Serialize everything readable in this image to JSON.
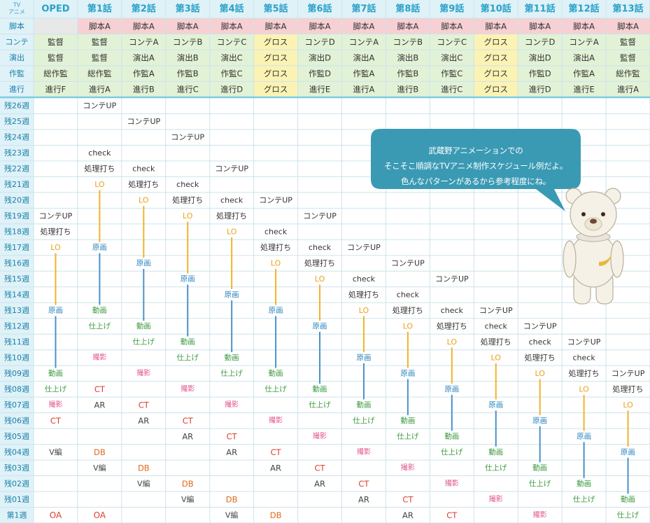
{
  "colors": {
    "header_bg": "#dff2f8",
    "header_text": "#2aa0c8",
    "row_label_text": "#1a7ea8",
    "grid": "#cde3ec",
    "divider": "#7ccbe2",
    "script_bg": "#f7d0d3",
    "kt_bg": "#e2f2d6",
    "gross_bg": "#fbf3b4",
    "shaded_bg": "#e8e8e8",
    "bubble": "#3a9ab4",
    "lo_line": "#f1b32a",
    "genga_line": "#4a92c6"
  },
  "header": {
    "corner": [
      "TV",
      "アニメ"
    ],
    "columns": [
      "OPED",
      "第1話",
      "第2話",
      "第3話",
      "第4話",
      "第5話",
      "第6話",
      "第7話",
      "第8話",
      "第9話",
      "第10話",
      "第11話",
      "第12話",
      "第13話"
    ]
  },
  "staff_rows": [
    {
      "label": "脚本",
      "cells": [
        "",
        "脚本A",
        "脚本A",
        "脚本A",
        "脚本A",
        "脚本A",
        "脚本A",
        "脚本A",
        "脚本A",
        "脚本A",
        "脚本A",
        "脚本A",
        "脚本A",
        "脚本A"
      ]
    },
    {
      "label": "コンテ",
      "cells": [
        "監督",
        "監督",
        "コンテA",
        "コンテB",
        "コンテC",
        "グロス",
        "コンテD",
        "コンテA",
        "コンテB",
        "コンテC",
        "グロス",
        "コンテD",
        "コンテA",
        "監督"
      ]
    },
    {
      "label": "演出",
      "cells": [
        "監督",
        "監督",
        "演出A",
        "演出B",
        "演出C",
        "グロス",
        "演出D",
        "演出A",
        "演出B",
        "演出C",
        "グロス",
        "演出D",
        "演出A",
        "監督"
      ]
    },
    {
      "label": "作監",
      "cells": [
        "総作監",
        "総作監",
        "作監A",
        "作監B",
        "作監C",
        "グロス",
        "作監D",
        "作監A",
        "作監B",
        "作監C",
        "グロス",
        "作監D",
        "作監A",
        "総作監"
      ]
    },
    {
      "label": "進行",
      "cells": [
        "進行F",
        "進行A",
        "進行B",
        "進行C",
        "進行D",
        "グロス",
        "進行E",
        "進行A",
        "進行B",
        "進行C",
        "グロス",
        "進行D",
        "進行E",
        "進行A"
      ]
    }
  ],
  "weeks": [
    "残26週",
    "残25週",
    "残24週",
    "残23週",
    "残22週",
    "残21週",
    "残20週",
    "残19週",
    "残18週",
    "残17週",
    "残16週",
    "残15週",
    "残14週",
    "残13週",
    "残12週",
    "残11週",
    "残10週",
    "残09週",
    "残08週",
    "残07週",
    "残06週",
    "残05週",
    "残04週",
    "残03週",
    "残02週",
    "残01週",
    "第1週"
  ],
  "tasks": {
    "storyboard_up": "コンテUP",
    "check": "check",
    "processing": "処理打ち",
    "lo": "LO",
    "genga": "原画",
    "douga": "動画",
    "shiage": "仕上げ",
    "satsuei": "撮影",
    "ct": "CT",
    "ar": "AR",
    "db": "DB",
    "vhen": "V編",
    "oa": "OA"
  },
  "schedule": [
    {
      "col": 0,
      "rows": {
        "storyboard_up": 7,
        "processing": 8,
        "lo": 9,
        "genga": 13,
        "douga": 17,
        "shiage": 18,
        "satsuei": 19,
        "ct": 20,
        "vhen": 22,
        "oa": 26
      }
    },
    {
      "col": 1,
      "rows": {
        "storyboard_up": 0,
        "check": 3,
        "processing": 4,
        "lo": 5,
        "genga": 9,
        "douga": 13,
        "shiage": 14,
        "satsuei": 16,
        "ct": 18,
        "ar": 19,
        "db": 22,
        "vhen": 23,
        "oa": 26
      }
    },
    {
      "col": 2,
      "rows": {
        "storyboard_up": 1,
        "check": 4,
        "processing": 5,
        "lo": 6,
        "genga": 10,
        "douga": 14,
        "shiage": 15,
        "satsuei": 17,
        "ct": 19,
        "ar": 20,
        "db": 23,
        "vhen": 24
      }
    },
    {
      "col": 3,
      "rows": {
        "storyboard_up": 2,
        "check": 5,
        "processing": 6,
        "lo": 7,
        "genga": 11,
        "douga": 15,
        "shiage": 16,
        "satsuei": 18,
        "ct": 20,
        "ar": 21,
        "db": 24,
        "vhen": 25
      }
    },
    {
      "col": 4,
      "rows": {
        "storyboard_up": 4,
        "check": 6,
        "processing": 7,
        "lo": 8,
        "genga": 12,
        "douga": 16,
        "shiage": 17,
        "satsuei": 19,
        "ct": 21,
        "ar": 22,
        "db": 25,
        "vhen": 26
      }
    },
    {
      "col": 5,
      "rows": {
        "storyboard_up": 6,
        "check": 8,
        "processing": 9,
        "lo": 10,
        "genga": 13,
        "douga": 17,
        "shiage": 18,
        "satsuei": 20,
        "ct": 22,
        "ar": 23,
        "db": 26
      }
    },
    {
      "col": 6,
      "rows": {
        "storyboard_up": 7,
        "check": 9,
        "processing": 10,
        "lo": 11,
        "genga": 14,
        "douga": 18,
        "shiage": 19,
        "satsuei": 21,
        "ct": 23,
        "ar": 24
      }
    },
    {
      "col": 7,
      "rows": {
        "storyboard_up": 9,
        "check": 11,
        "processing": 12,
        "lo": 13,
        "genga": 16,
        "douga": 19,
        "shiage": 20,
        "satsuei": 22,
        "ct": 24,
        "ar": 25
      }
    },
    {
      "col": 8,
      "rows": {
        "storyboard_up": 10,
        "check": 12,
        "processing": 13,
        "lo": 14,
        "genga": 17,
        "douga": 20,
        "shiage": 21,
        "satsuei": 23,
        "ct": 25,
        "ar": 26
      }
    },
    {
      "col": 9,
      "rows": {
        "storyboard_up": 11,
        "check": 13,
        "processing": 14,
        "lo": 15,
        "genga": 18,
        "douga": 21,
        "shiage": 22,
        "satsuei": 24,
        "ct": 26
      }
    },
    {
      "col": 10,
      "rows": {
        "storyboard_up": 13,
        "check": 14,
        "processing": 15,
        "lo": 16,
        "genga": 19,
        "douga": 22,
        "shiage": 23,
        "satsuei": 25
      }
    },
    {
      "col": 11,
      "rows": {
        "storyboard_up": 14,
        "check": 15,
        "processing": 16,
        "lo": 17,
        "genga": 20,
        "douga": 23,
        "shiage": 24,
        "satsuei": 26
      }
    },
    {
      "col": 12,
      "rows": {
        "storyboard_up": 15,
        "check": 16,
        "processing": 17,
        "lo": 18,
        "genga": 21,
        "douga": 24,
        "shiage": 25
      }
    },
    {
      "col": 13,
      "rows": {
        "storyboard_up": 17,
        "processing": 18,
        "lo": 19,
        "genga": 22,
        "douga": 25,
        "shiage": 26
      }
    }
  ],
  "bubble": {
    "lines": [
      "武蔵野アニメーションでの",
      "そこそこ順調なTVアニメ制作スケジュール例だよ。",
      "色んなパターンがあるから参考程度にね。"
    ]
  }
}
